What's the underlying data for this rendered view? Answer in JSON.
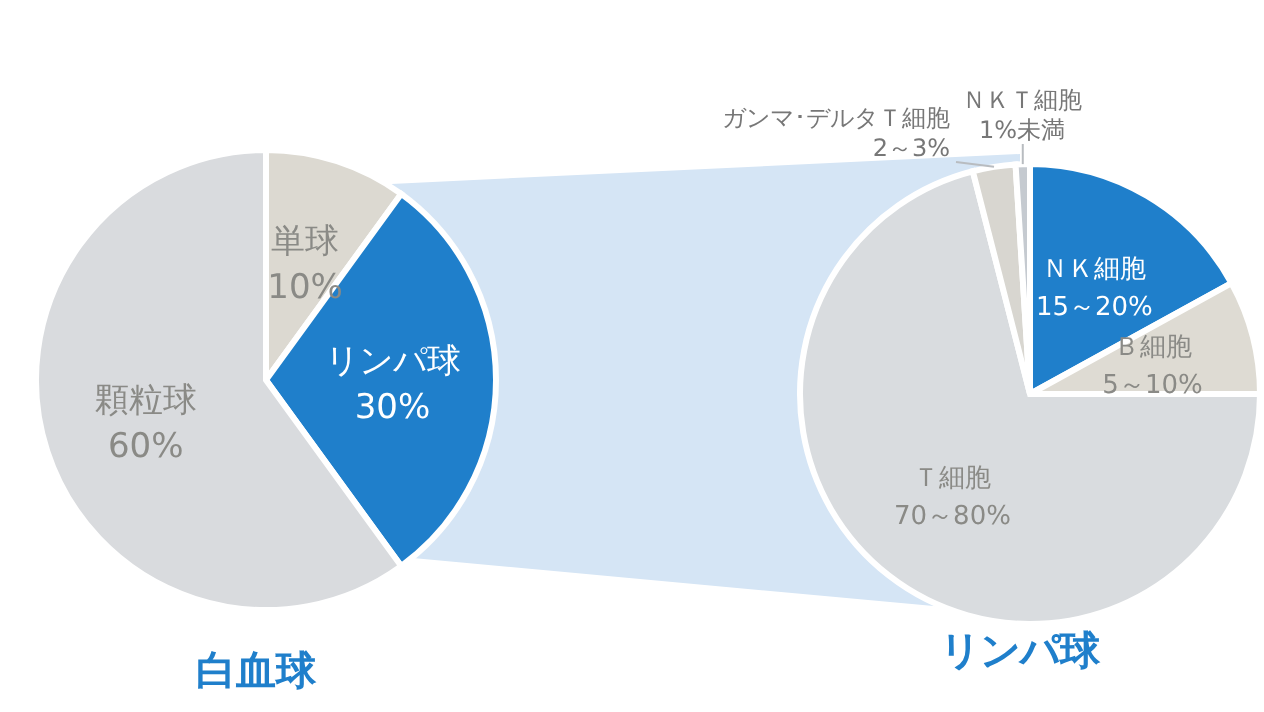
{
  "chart_data": [
    {
      "type": "pie",
      "title": "白血球",
      "categories": [
        "単球",
        "リンパ球",
        "顆粒球"
      ],
      "values": [
        10,
        30,
        60
      ],
      "value_labels": [
        "10%",
        "30%",
        "60%"
      ],
      "colors": [
        "#dcd9d1",
        "#1f7fcb",
        "#d9dbde"
      ]
    },
    {
      "type": "pie",
      "title": "リンパ球",
      "categories": [
        "ＮＫ細胞",
        "Ｂ細胞",
        "Ｔ細胞",
        "ガンマ･デルタＴ細胞",
        "ＮＫＴ細胞"
      ],
      "values": [
        17,
        8,
        71,
        3,
        1
      ],
      "annotations": [
        "15～20%",
        "5～10%",
        "70～80%",
        "2～3%",
        "1%未満"
      ],
      "colors": [
        "#1f7fcb",
        "#dedbd3",
        "#d9dcdf",
        "#d8d6d0",
        "#c5cad0"
      ]
    }
  ]
}
